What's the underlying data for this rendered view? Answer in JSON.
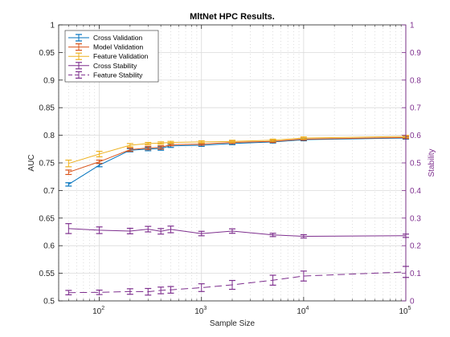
{
  "chart_data": {
    "type": "line",
    "title": "MltNet HPC Results.",
    "xlabel": "Sample Size",
    "ylabel_left": "AUC",
    "ylabel_right": "Stability",
    "xscale": "log",
    "xlim": [
      40,
      100000
    ],
    "ylim_left": [
      0.5,
      1
    ],
    "ylim_right": [
      0,
      1
    ],
    "grid": true,
    "minor_grid": "x",
    "legend_position": "top-left",
    "x_ticks": [
      {
        "value": 100,
        "base": "10",
        "exp": "2"
      },
      {
        "value": 1000,
        "base": "10",
        "exp": "3"
      },
      {
        "value": 10000,
        "base": "10",
        "exp": "4"
      },
      {
        "value": 100000,
        "base": "10",
        "exp": "5"
      }
    ],
    "y_ticks_left": [
      {
        "value": 0.5,
        "label": "0.5"
      },
      {
        "value": 0.55,
        "label": "0.55"
      },
      {
        "value": 0.6,
        "label": "0.6"
      },
      {
        "value": 0.65,
        "label": "0.65"
      },
      {
        "value": 0.7,
        "label": "0.7"
      },
      {
        "value": 0.75,
        "label": "0.75"
      },
      {
        "value": 0.8,
        "label": "0.8"
      },
      {
        "value": 0.85,
        "label": "0.85"
      },
      {
        "value": 0.9,
        "label": "0.9"
      },
      {
        "value": 0.95,
        "label": "0.95"
      },
      {
        "value": 1,
        "label": "1"
      }
    ],
    "y_ticks_right": [
      {
        "value": 0,
        "label": "0"
      },
      {
        "value": 0.1,
        "label": "0.1"
      },
      {
        "value": 0.2,
        "label": "0.2"
      },
      {
        "value": 0.3,
        "label": "0.3"
      },
      {
        "value": 0.4,
        "label": "0.4"
      },
      {
        "value": 0.5,
        "label": "0.5"
      },
      {
        "value": 0.6,
        "label": "0.6"
      },
      {
        "value": 0.7,
        "label": "0.7"
      },
      {
        "value": 0.8,
        "label": "0.8"
      },
      {
        "value": 0.9,
        "label": "0.9"
      },
      {
        "value": 1,
        "label": "1"
      }
    ],
    "x": [
      50,
      100,
      200,
      300,
      400,
      500,
      1000,
      2000,
      5000,
      10000,
      100000
    ],
    "series": [
      {
        "name": "Cross Validation",
        "axis": "left",
        "color": "#0072BD",
        "dash": "solid",
        "values": [
          0.711,
          0.746,
          0.773,
          0.775,
          0.776,
          0.781,
          0.782,
          0.785,
          0.788,
          0.792,
          0.795
        ],
        "errors": [
          0.003,
          0.003,
          0.003,
          0.003,
          0.003,
          0.003,
          0.002,
          0.002,
          0.002,
          0.002,
          0.002
        ]
      },
      {
        "name": "Model Validation",
        "axis": "left",
        "color": "#D95319",
        "dash": "solid",
        "values": [
          0.733,
          0.752,
          0.774,
          0.777,
          0.778,
          0.783,
          0.784,
          0.787,
          0.789,
          0.793,
          0.796
        ],
        "errors": [
          0.004,
          0.003,
          0.003,
          0.003,
          0.003,
          0.002,
          0.002,
          0.002,
          0.002,
          0.002,
          0.002
        ]
      },
      {
        "name": "Feature Validation",
        "axis": "left",
        "color": "#EDB120",
        "dash": "solid",
        "values": [
          0.749,
          0.766,
          0.782,
          0.785,
          0.786,
          0.787,
          0.788,
          0.789,
          0.791,
          0.795,
          0.798
        ],
        "errors": [
          0.006,
          0.005,
          0.003,
          0.002,
          0.002,
          0.002,
          0.002,
          0.002,
          0.002,
          0.002,
          0.002
        ]
      },
      {
        "name": "Cross Stability",
        "axis": "right",
        "color": "#7E2F8E",
        "dash": "solid",
        "values": [
          0.262,
          0.256,
          0.253,
          0.26,
          0.252,
          0.259,
          0.244,
          0.253,
          0.239,
          0.234,
          0.236
        ],
        "errors": [
          0.018,
          0.012,
          0.01,
          0.01,
          0.01,
          0.012,
          0.008,
          0.008,
          0.006,
          0.006,
          0.006
        ]
      },
      {
        "name": "Feature Stability",
        "axis": "right",
        "color": "#7E2F8E",
        "dash": "dash",
        "values": [
          0.03,
          0.031,
          0.034,
          0.033,
          0.038,
          0.04,
          0.048,
          0.058,
          0.075,
          0.09,
          0.105
        ],
        "errors": [
          0.008,
          0.008,
          0.01,
          0.012,
          0.012,
          0.012,
          0.014,
          0.016,
          0.018,
          0.018,
          0.02
        ]
      }
    ]
  }
}
